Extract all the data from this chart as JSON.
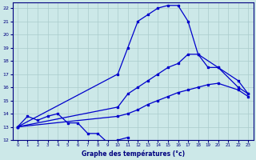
{
  "title": "Graphe des températures (°c)",
  "bg_color": "#cce8e8",
  "grid_color": "#aacccc",
  "line_color": "#0000cc",
  "xlabel_color": "#000080",
  "ylim": [
    12,
    22.4
  ],
  "xlim": [
    -0.5,
    23.5
  ],
  "yticks": [
    12,
    13,
    14,
    15,
    16,
    17,
    18,
    19,
    20,
    21,
    22
  ],
  "xticks": [
    0,
    1,
    2,
    3,
    4,
    5,
    6,
    7,
    8,
    9,
    10,
    11,
    12,
    13,
    14,
    15,
    16,
    17,
    18,
    19,
    20,
    21,
    22,
    23
  ],
  "line_zigzag_x": [
    0,
    1,
    2,
    3,
    4,
    5,
    6,
    7,
    8,
    9,
    10,
    11
  ],
  "line_zigzag_y": [
    13.0,
    13.8,
    13.5,
    13.8,
    14.0,
    13.3,
    13.3,
    12.5,
    12.5,
    11.8,
    12.0,
    12.2
  ],
  "line_hump_x": [
    0,
    10,
    11,
    12,
    13,
    14,
    15,
    16,
    17,
    18,
    20,
    22,
    23
  ],
  "line_hump_y": [
    13.0,
    17.0,
    19.0,
    21.0,
    21.5,
    22.0,
    22.2,
    22.2,
    21.0,
    18.5,
    17.5,
    16.0,
    15.5
  ],
  "line_upper_x": [
    0,
    10,
    11,
    12,
    13,
    14,
    15,
    16,
    17,
    18,
    19,
    20,
    22,
    23
  ],
  "line_upper_y": [
    13.0,
    14.5,
    15.5,
    16.0,
    16.5,
    17.0,
    17.5,
    17.8,
    18.5,
    18.5,
    17.5,
    17.5,
    16.5,
    15.5
  ],
  "line_lower_x": [
    0,
    10,
    11,
    12,
    13,
    14,
    15,
    16,
    17,
    18,
    19,
    20,
    22,
    23
  ],
  "line_lower_y": [
    13.0,
    13.8,
    14.0,
    14.3,
    14.7,
    15.0,
    15.3,
    15.6,
    15.8,
    16.0,
    16.2,
    16.3,
    15.8,
    15.3
  ]
}
